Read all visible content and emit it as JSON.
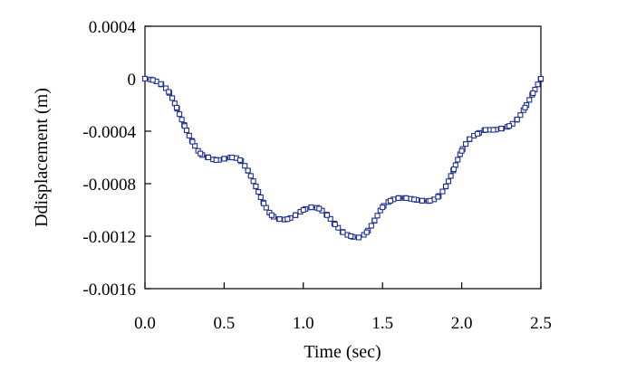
{
  "chart_data": {
    "type": "line",
    "title": "",
    "xlabel": "Time (sec)",
    "ylabel": "Ddisplacement (m)",
    "xlim": [
      0.0,
      2.5
    ],
    "ylim": [
      -0.0016,
      0.0004
    ],
    "x_ticks": [
      "0.0",
      "0.5",
      "1.0",
      "1.5",
      "2.0",
      "2.5"
    ],
    "y_ticks": [
      "0.0004",
      "0",
      "-0.0004",
      "-0.0008",
      "-0.0012",
      "-0.0016"
    ],
    "grid": false,
    "legend": "none",
    "colors": {
      "series": "#1f2f8f",
      "axes": "#000000"
    },
    "series": [
      {
        "marker": "open-square",
        "x": [
          0.0,
          0.05,
          0.1,
          0.15,
          0.2,
          0.25,
          0.3,
          0.35,
          0.4,
          0.45,
          0.5,
          0.55,
          0.6,
          0.65,
          0.7,
          0.75,
          0.8,
          0.85,
          0.9,
          0.95,
          1.0,
          1.05,
          1.1,
          1.15,
          1.2,
          1.25,
          1.3,
          1.35,
          1.4,
          1.45,
          1.5,
          1.55,
          1.6,
          1.65,
          1.7,
          1.75,
          1.8,
          1.85,
          1.9,
          1.95,
          2.0,
          2.05,
          2.1,
          2.15,
          2.2,
          2.25,
          2.3,
          2.35,
          2.4,
          2.45,
          2.5
        ],
        "y": [
          0.0,
          -1e-05,
          -4e-05,
          -0.0001,
          -0.00022,
          -0.00036,
          -0.00048,
          -0.00057,
          -0.0006,
          -0.00062,
          -0.00061,
          -0.0006,
          -0.00062,
          -0.0007,
          -0.00082,
          -0.00095,
          -0.00104,
          -0.00107,
          -0.00107,
          -0.00104,
          -0.001,
          -0.00098,
          -0.00099,
          -0.00104,
          -0.00111,
          -0.00117,
          -0.0012,
          -0.00121,
          -0.00117,
          -0.00108,
          -0.00098,
          -0.00093,
          -0.00091,
          -0.00091,
          -0.00092,
          -0.00093,
          -0.00093,
          -0.0009,
          -0.00082,
          -0.00069,
          -0.00055,
          -0.00046,
          -0.00042,
          -0.00039,
          -0.00039,
          -0.00038,
          -0.00036,
          -0.00031,
          -0.00022,
          -0.00011,
          0.0
        ]
      }
    ]
  }
}
